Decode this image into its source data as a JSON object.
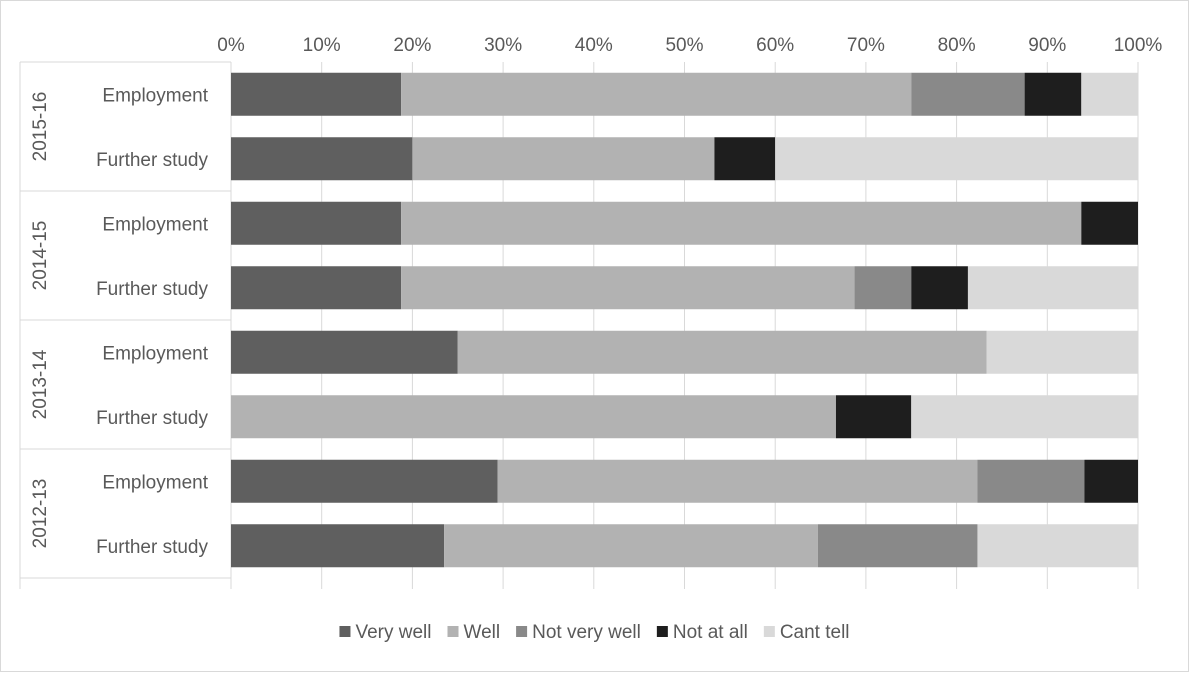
{
  "chart_data": {
    "type": "bar",
    "orientation": "horizontal",
    "stacking": "percent",
    "title": "",
    "xlabel": "",
    "ylabel": "",
    "xlim": [
      0,
      100
    ],
    "x_tick_labels": [
      "0%",
      "10%",
      "20%",
      "30%",
      "40%",
      "50%",
      "60%",
      "70%",
      "80%",
      "90%",
      "100%"
    ],
    "grid": true,
    "legend_position": "bottom",
    "groups": [
      {
        "label": "2015-16",
        "categories": [
          "Employment",
          "Further study"
        ]
      },
      {
        "label": "2014-15",
        "categories": [
          "Employment",
          "Further study"
        ]
      },
      {
        "label": "2013-14",
        "categories": [
          "Employment",
          "Further study"
        ]
      },
      {
        "label": "2012-13",
        "categories": [
          "Employment",
          "Further study"
        ]
      }
    ],
    "series": [
      {
        "name": "Very well",
        "color": "#5f5f5f",
        "values": [
          18.75,
          20.0,
          18.75,
          18.75,
          25.0,
          0.0,
          29.4,
          23.5
        ]
      },
      {
        "name": "Well",
        "color": "#b2b2b2",
        "values": [
          56.25,
          33.3,
          75.0,
          50.0,
          58.3,
          66.7,
          52.9,
          41.2
        ]
      },
      {
        "name": "Not very well",
        "color": "#898989",
        "values": [
          12.5,
          0.0,
          0.0,
          6.25,
          0.0,
          0.0,
          11.8,
          17.6
        ]
      },
      {
        "name": "Not at all",
        "color": "#1e1e1e",
        "values": [
          6.25,
          6.7,
          6.25,
          6.25,
          0.0,
          8.3,
          5.9,
          0.0
        ]
      },
      {
        "name": "Cant tell",
        "color": "#d9d9d9",
        "values": [
          6.25,
          40.0,
          0.0,
          18.75,
          16.7,
          25.0,
          0.0,
          17.7
        ]
      }
    ]
  }
}
